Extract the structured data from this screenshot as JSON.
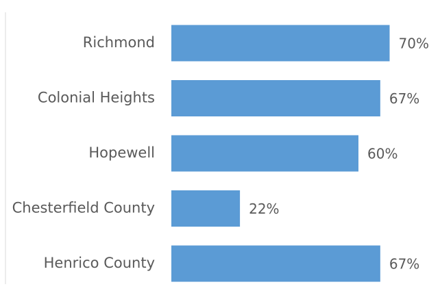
{
  "chart_data": {
    "type": "bar",
    "orientation": "horizontal",
    "categories": [
      "Richmond",
      "Colonial Heights",
      "Hopewell",
      "Chesterfield County",
      "Henrico County"
    ],
    "values": [
      70,
      67,
      60,
      22,
      67
    ],
    "value_labels": [
      "70%",
      "67%",
      "60%",
      "22%",
      "67%"
    ],
    "unit": "%",
    "xlim": [
      0,
      100
    ],
    "grid": false,
    "legend": "none",
    "colors": {
      "bar": "#5b9bd5",
      "text": "#595959",
      "axis": "#d9d9d9"
    }
  }
}
